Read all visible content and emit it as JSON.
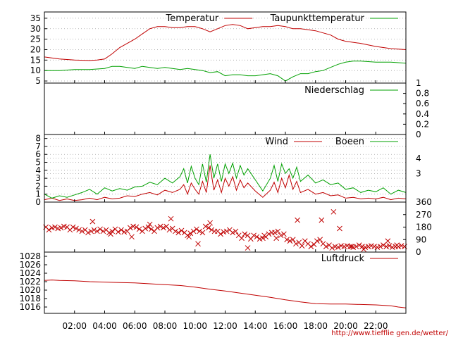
{
  "credit": "http://www.tiefflie gen.de/wetter/",
  "colors": {
    "red": "#c00000",
    "green": "#00a000",
    "grid": "#a0a0a0"
  },
  "time_ticks": [
    "02:00",
    "04:00",
    "06:00",
    "08:00",
    "10:00",
    "12:00",
    "14:00",
    "16:00",
    "18:00",
    "20:00",
    "22:00"
  ],
  "chart_data": [
    {
      "type": "line",
      "panel": "temperature",
      "x_unit": "hours",
      "xlim": [
        0,
        24
      ],
      "ylim": [
        4,
        38
      ],
      "yticks": [
        "5",
        "10",
        "15",
        "20",
        "25",
        "30",
        "35"
      ],
      "ytick_values": [
        5,
        10,
        15,
        20,
        25,
        30,
        35
      ],
      "grid": true,
      "legend_position": "top-right",
      "series": [
        {
          "name": "Temperatur",
          "color": "#c00000",
          "x": [
            0,
            1,
            2,
            3,
            3.5,
            4,
            4.5,
            5,
            5.5,
            6,
            6.5,
            7,
            7.5,
            8,
            8.5,
            9,
            9.5,
            10,
            10.5,
            11,
            11.5,
            12,
            12.5,
            13,
            13.5,
            14,
            14.5,
            15,
            15.5,
            16,
            16.5,
            17,
            17.5,
            18,
            18.5,
            19,
            19.5,
            20,
            21,
            22,
            23,
            24
          ],
          "y": [
            16.5,
            15.5,
            15,
            14.8,
            15,
            15.5,
            18,
            21,
            23,
            25,
            27.5,
            30,
            31,
            31,
            30.5,
            30.5,
            31,
            31,
            30,
            28.5,
            30,
            31.5,
            32,
            31.5,
            30,
            30.5,
            31,
            31,
            31.5,
            31,
            30,
            30,
            29.5,
            29,
            28,
            27,
            25,
            24,
            23,
            21.5,
            20.5,
            20
          ]
        },
        {
          "name": "Taupunkttemperatur",
          "color": "#00a000",
          "x": [
            0,
            1,
            2,
            3,
            4,
            4.5,
            5,
            5.5,
            6,
            6.5,
            7,
            7.5,
            8,
            8.5,
            9,
            9.5,
            10,
            10.5,
            11,
            11.5,
            12,
            12.5,
            13,
            13.5,
            14,
            14.5,
            15,
            15.5,
            16,
            16.5,
            17,
            17.5,
            18,
            18.5,
            19,
            19.5,
            20,
            20.5,
            21,
            22,
            23,
            24
          ],
          "y": [
            10,
            10,
            10.5,
            10.5,
            11,
            12,
            12,
            11.5,
            11,
            12,
            11.5,
            11,
            11.5,
            11,
            10.5,
            11,
            10.5,
            10,
            9,
            9.5,
            7.5,
            8,
            8,
            7.5,
            7.5,
            8,
            8.5,
            7.5,
            5,
            7,
            8.5,
            8.5,
            9.5,
            10,
            11.5,
            13,
            14,
            14.5,
            14.5,
            14,
            14,
            13.5
          ]
        }
      ]
    },
    {
      "type": "line",
      "panel": "precipitation",
      "x_unit": "hours",
      "xlim": [
        0,
        24
      ],
      "ylim": [
        0,
        1
      ],
      "yticks": [
        "0",
        "0.2",
        "0.4",
        "0.6",
        "0.8",
        "1"
      ],
      "ytick_values": [
        0,
        0.2,
        0.4,
        0.6,
        0.8,
        1
      ],
      "grid": false,
      "legend_position": "top-right",
      "series": [
        {
          "name": "Niederschlag",
          "color": "#00a000",
          "x": [
            0,
            24
          ],
          "y": [
            0,
            0
          ]
        }
      ]
    },
    {
      "type": "line",
      "panel": "wind",
      "x_unit": "hours",
      "xlim": [
        0,
        24
      ],
      "ylim": [
        0,
        8.5
      ],
      "yticks": [
        "0",
        "1",
        "2",
        "3",
        "4",
        "5",
        "6",
        "7",
        "8"
      ],
      "ytick_values": [
        0,
        1,
        2,
        3,
        4,
        5,
        6,
        7,
        8
      ],
      "y2ticks": [
        "3",
        "4"
      ],
      "y2tick_values": [
        3.6,
        5.5
      ],
      "grid": true,
      "legend_position": "top-right",
      "series": [
        {
          "name": "Wind",
          "color": "#c00000",
          "x": [
            0,
            0.5,
            1,
            1.5,
            2,
            2.5,
            3,
            3.5,
            4,
            4.5,
            5,
            5.5,
            6,
            6.5,
            7,
            7.5,
            8,
            8.5,
            9,
            9.25,
            9.5,
            9.75,
            10,
            10.25,
            10.5,
            10.75,
            11,
            11.25,
            11.5,
            11.75,
            12,
            12.25,
            12.5,
            12.75,
            13,
            13.25,
            13.5,
            14,
            14.5,
            15,
            15.25,
            15.5,
            15.75,
            16,
            16.25,
            16.5,
            16.75,
            17,
            17.5,
            18,
            18.5,
            19,
            19.5,
            20,
            20.5,
            21,
            21.5,
            22,
            22.5,
            23,
            23.5,
            24
          ],
          "y": [
            0.3,
            0.5,
            0.2,
            0.4,
            0.2,
            0.3,
            0.5,
            0.3,
            0.6,
            0.4,
            0.5,
            0.8,
            0.7,
            1.0,
            1.2,
            0.9,
            1.5,
            1.2,
            1.6,
            2.2,
            1.0,
            2.4,
            1.6,
            1.0,
            2.6,
            1.2,
            4.6,
            1.5,
            2.8,
            1.2,
            3.0,
            2.0,
            3.2,
            1.5,
            2.8,
            1.8,
            2.4,
            1.4,
            0.6,
            1.5,
            2.5,
            1.2,
            3.0,
            1.8,
            3.4,
            1.6,
            2.6,
            1.2,
            1.6,
            1.0,
            1.2,
            0.8,
            0.9,
            0.5,
            0.6,
            0.4,
            0.5,
            0.4,
            0.6,
            0.3,
            0.5,
            0.4
          ]
        },
        {
          "name": "Boeen",
          "color": "#00a000",
          "x": [
            0,
            0.5,
            1,
            1.5,
            2,
            2.5,
            3,
            3.5,
            4,
            4.5,
            5,
            5.5,
            6,
            6.5,
            7,
            7.5,
            8,
            8.5,
            9,
            9.25,
            9.5,
            9.75,
            10,
            10.25,
            10.5,
            10.75,
            11,
            11.25,
            11.5,
            11.75,
            12,
            12.25,
            12.5,
            12.75,
            13,
            13.25,
            13.5,
            14,
            14.5,
            15,
            15.25,
            15.5,
            15.75,
            16,
            16.25,
            16.5,
            16.75,
            17,
            17.5,
            18,
            18.5,
            19,
            19.5,
            20,
            20.5,
            21,
            21.5,
            22,
            22.5,
            23,
            23.5,
            24
          ],
          "y": [
            1.0,
            0.5,
            0.8,
            0.6,
            0.9,
            1.2,
            1.6,
            1.0,
            1.8,
            1.4,
            1.7,
            1.5,
            1.9,
            2.0,
            2.5,
            2.2,
            3.0,
            2.4,
            3.2,
            4.2,
            2.4,
            4.5,
            3.0,
            2.2,
            4.8,
            2.5,
            6.0,
            3.0,
            4.8,
            2.6,
            4.8,
            3.6,
            4.9,
            3.0,
            4.6,
            3.4,
            4.2,
            2.8,
            1.4,
            3.0,
            4.6,
            2.6,
            4.8,
            3.6,
            4.2,
            3.0,
            4.4,
            2.6,
            3.4,
            2.4,
            2.8,
            2.2,
            2.4,
            1.6,
            1.8,
            1.2,
            1.5,
            1.3,
            1.8,
            1.0,
            1.5,
            1.2
          ]
        }
      ]
    },
    {
      "type": "scatter",
      "panel": "wind-direction",
      "x_unit": "hours",
      "xlim": [
        0,
        24
      ],
      "ylim": [
        0,
        360
      ],
      "yticks": [
        "0",
        "90",
        "180",
        "270",
        "360"
      ],
      "ytick_values": [
        0,
        90,
        180,
        270,
        360
      ],
      "grid": false,
      "marker": "x",
      "series": [
        {
          "color": "#c00000",
          "x": [
            0.1,
            0.3,
            0.5,
            0.7,
            0.9,
            1.1,
            1.3,
            1.5,
            1.7,
            1.9,
            2.1,
            2.3,
            2.5,
            2.7,
            2.9,
            3.1,
            3.3,
            3.5,
            3.7,
            3.9,
            4.1,
            4.3,
            4.5,
            4.7,
            4.9,
            5.1,
            5.3,
            5.5,
            5.7,
            5.9,
            6.1,
            6.3,
            6.5,
            6.7,
            6.9,
            7.1,
            7.3,
            7.5,
            7.7,
            7.9,
            8.1,
            8.3,
            8.5,
            8.7,
            8.9,
            9.1,
            9.3,
            9.5,
            9.7,
            9.9,
            10.1,
            10.3,
            10.5,
            10.7,
            10.9,
            11.1,
            11.3,
            11.5,
            11.7,
            11.9,
            12.1,
            12.3,
            12.5,
            12.7,
            12.9,
            13.1,
            13.3,
            13.5,
            13.7,
            13.9,
            14.1,
            14.3,
            14.5,
            14.7,
            14.9,
            15.1,
            15.3,
            15.5,
            15.7,
            15.9,
            16.1,
            16.3,
            16.5,
            16.7,
            16.9,
            17.1,
            17.3,
            17.5,
            17.7,
            17.9,
            18.1,
            18.3,
            18.5,
            18.7,
            18.9,
            19.1,
            19.3,
            19.5,
            19.7,
            19.9,
            20.1,
            20.3,
            20.5,
            20.7,
            20.9,
            21.1,
            21.3,
            21.5,
            21.7,
            21.9,
            22.1,
            22.3,
            22.5,
            22.7,
            22.9,
            23.1,
            23.3,
            23.5,
            23.7,
            23.9,
            3.2,
            4.4,
            5.8,
            7.0,
            8.4,
            9.6,
            10.2,
            11.0,
            13.5,
            14.6,
            15.4,
            16.8,
            18.4,
            19.2,
            19.6,
            20.4,
            21.2,
            22.8,
            23.4
          ],
          "y": [
            180,
            160,
            175,
            180,
            170,
            175,
            185,
            180,
            160,
            180,
            170,
            160,
            150,
            160,
            140,
            150,
            160,
            150,
            165,
            150,
            160,
            140,
            150,
            165,
            145,
            160,
            145,
            150,
            175,
            185,
            180,
            165,
            150,
            170,
            180,
            165,
            150,
            175,
            185,
            175,
            185,
            160,
            170,
            150,
            140,
            155,
            140,
            120,
            135,
            150,
            165,
            150,
            140,
            185,
            175,
            160,
            150,
            150,
            130,
            145,
            150,
            160,
            140,
            150,
            120,
            100,
            130,
            120,
            95,
            120,
            110,
            95,
            100,
            110,
            130,
            140,
            140,
            150,
            120,
            130,
            90,
            80,
            90,
            60,
            70,
            45,
            80,
            60,
            40,
            55,
            80,
            90,
            60,
            40,
            50,
            30,
            40,
            35,
            45,
            40,
            45,
            40,
            35,
            40,
            50,
            40,
            35,
            40,
            45,
            40,
            35,
            40,
            50,
            40,
            45,
            35,
            40,
            40,
            45,
            40,
            220,
            130,
            110,
            200,
            240,
            110,
            60,
            210,
            30,
            120,
            100,
            230,
            230,
            290,
            170,
            40,
            20,
            80,
            50
          ]
        }
      ]
    },
    {
      "type": "line",
      "panel": "pressure",
      "x_unit": "hours",
      "xlim": [
        0,
        24
      ],
      "ylim": [
        1014.5,
        1029
      ],
      "yticks": [
        "1016",
        "1018",
        "1020",
        "1022",
        "1024",
        "1026",
        "1028"
      ],
      "ytick_values": [
        1016,
        1018,
        1020,
        1022,
        1024,
        1026,
        1028
      ],
      "grid": false,
      "legend_position": "top-right",
      "series": [
        {
          "name": "Luftdruck",
          "color": "#c00000",
          "x": [
            0,
            0.5,
            1,
            2,
            3,
            4,
            5,
            6,
            7,
            8,
            9,
            10,
            11,
            12,
            13,
            14,
            15,
            16,
            17,
            18,
            19,
            20,
            21,
            22,
            23,
            23.5,
            24
          ],
          "y": [
            1022.3,
            1022.4,
            1022.3,
            1022.2,
            1022.0,
            1021.9,
            1021.8,
            1021.7,
            1021.5,
            1021.3,
            1021.1,
            1020.7,
            1020.2,
            1019.8,
            1019.3,
            1018.8,
            1018.3,
            1017.7,
            1017.2,
            1016.8,
            1016.7,
            1016.7,
            1016.6,
            1016.5,
            1016.3,
            1016.0,
            1015.8
          ]
        }
      ]
    }
  ]
}
